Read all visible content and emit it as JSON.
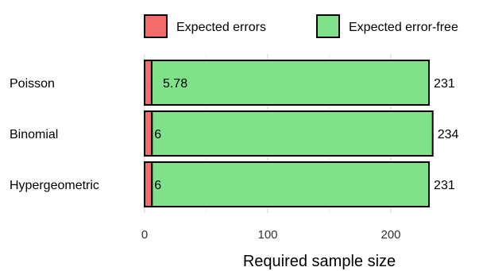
{
  "chart_data": {
    "type": "bar",
    "orientation": "horizontal",
    "stacked": true,
    "categories": [
      "Poisson",
      "Binomial",
      "Hypergeometric"
    ],
    "series": [
      {
        "name": "Expected errors",
        "color": "#f46b6b",
        "values": [
          5.78,
          6,
          6
        ],
        "labels": [
          "5.78",
          "6",
          "6"
        ]
      },
      {
        "name": "Expected error-free",
        "color": "#7fe28a",
        "values": [
          225.22,
          228,
          225
        ]
      }
    ],
    "totals": [
      231,
      234,
      231
    ],
    "total_labels": [
      "231",
      "234",
      "231"
    ],
    "xlabel": "Required sample size",
    "ylabel": "",
    "xlim": [
      0,
      240
    ],
    "xticks": [
      0,
      100,
      200
    ],
    "xtick_labels": [
      "0",
      "100",
      "200"
    ],
    "grid": true,
    "legend_position": "top"
  }
}
